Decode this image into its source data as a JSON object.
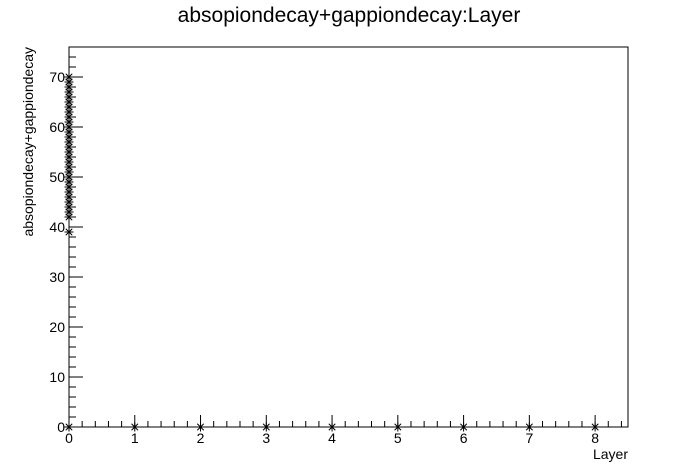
{
  "chart_data": {
    "type": "scatter",
    "title": "absopiondecay+gappiondecay:Layer",
    "xlabel": "Layer",
    "ylabel": "absopiondecay+gappiondecay",
    "xlim": [
      0,
      8.5
    ],
    "ylim": [
      0,
      76
    ],
    "x_ticks": [
      0,
      1,
      2,
      3,
      4,
      5,
      6,
      7,
      8
    ],
    "y_ticks": [
      0,
      10,
      20,
      30,
      40,
      50,
      60,
      70
    ],
    "marker": "star",
    "grid": false,
    "series": [
      {
        "points": [
          {
            "x": 0,
            "y": 0
          },
          {
            "x": 0,
            "y": 39
          },
          {
            "x": 0,
            "y": 42
          },
          {
            "x": 0,
            "y": 43
          },
          {
            "x": 0,
            "y": 44
          },
          {
            "x": 0,
            "y": 45
          },
          {
            "x": 0,
            "y": 46
          },
          {
            "x": 0,
            "y": 47
          },
          {
            "x": 0,
            "y": 48
          },
          {
            "x": 0,
            "y": 49
          },
          {
            "x": 0,
            "y": 50
          },
          {
            "x": 0,
            "y": 51
          },
          {
            "x": 0,
            "y": 52
          },
          {
            "x": 0,
            "y": 53
          },
          {
            "x": 0,
            "y": 54
          },
          {
            "x": 0,
            "y": 55
          },
          {
            "x": 0,
            "y": 56
          },
          {
            "x": 0,
            "y": 57
          },
          {
            "x": 0,
            "y": 58
          },
          {
            "x": 0,
            "y": 59
          },
          {
            "x": 0,
            "y": 60
          },
          {
            "x": 0,
            "y": 61
          },
          {
            "x": 0,
            "y": 62
          },
          {
            "x": 0,
            "y": 63
          },
          {
            "x": 0,
            "y": 64
          },
          {
            "x": 0,
            "y": 65
          },
          {
            "x": 0,
            "y": 66
          },
          {
            "x": 0,
            "y": 67
          },
          {
            "x": 0,
            "y": 68
          },
          {
            "x": 0,
            "y": 69
          },
          {
            "x": 0,
            "y": 70
          },
          {
            "x": 1,
            "y": 0
          },
          {
            "x": 2,
            "y": 0
          },
          {
            "x": 3,
            "y": 0
          },
          {
            "x": 4,
            "y": 0
          },
          {
            "x": 5,
            "y": 0
          },
          {
            "x": 6,
            "y": 0
          },
          {
            "x": 7,
            "y": 0
          },
          {
            "x": 8,
            "y": 0
          }
        ]
      }
    ]
  }
}
